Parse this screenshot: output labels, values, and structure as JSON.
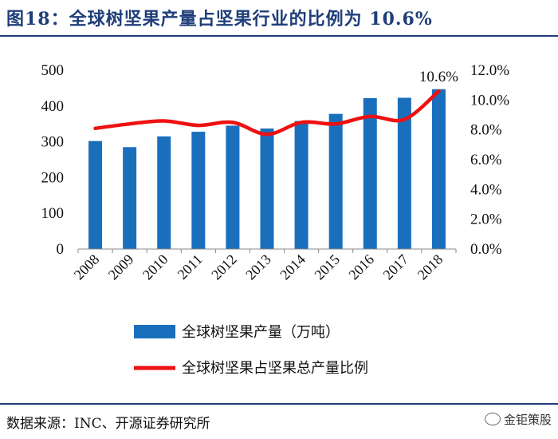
{
  "header": {
    "title": "图18：全球树坚果产量占坚果行业的比例为 10.6%"
  },
  "footer": {
    "source": "数据来源：INC、开源证券研究所",
    "watermark": "金钜策股"
  },
  "colors": {
    "title": "#1f3e7a",
    "bar": "#1a6fbd",
    "line": "#ee1111"
  },
  "chart_data": {
    "type": "bar",
    "title": "全球树坚果产量占坚果行业的比例为 10.6%",
    "categories": [
      "2008",
      "2009",
      "2010",
      "2011",
      "2012",
      "2013",
      "2014",
      "2015",
      "2016",
      "2017",
      "2018"
    ],
    "series": [
      {
        "name": "全球树坚果产量（万吨）",
        "type": "bar",
        "axis": "left",
        "values": [
          302,
          285,
          315,
          328,
          345,
          337,
          358,
          378,
          422,
          423,
          447
        ]
      },
      {
        "name": "全球树坚果占坚果总产量比例",
        "type": "line",
        "axis": "right",
        "values": [
          8.1,
          8.4,
          8.6,
          8.3,
          8.5,
          7.7,
          8.5,
          8.4,
          8.9,
          8.7,
          10.6
        ]
      }
    ],
    "ylim_left": [
      0,
      500
    ],
    "ylim_right": [
      0,
      12
    ],
    "left_ticks": [
      "0",
      "100",
      "200",
      "300",
      "400",
      "500"
    ],
    "right_ticks": [
      "0.0%",
      "2.0%",
      "4.0%",
      "6.0%",
      "8.0%",
      "10.0%",
      "12.0%"
    ],
    "annotation": {
      "category": "2018",
      "text": "10.6%"
    },
    "legend": [
      "全球树坚果产量（万吨）",
      "全球树坚果占坚果总产量比例"
    ],
    "legend_position": "bottom",
    "grid": false
  }
}
